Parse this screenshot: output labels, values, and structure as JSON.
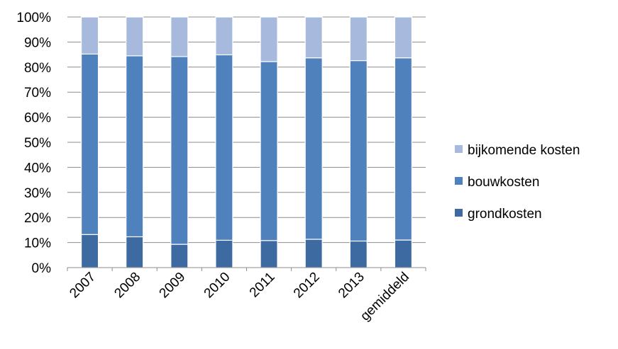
{
  "chart_data": {
    "type": "bar",
    "stacked": "percent",
    "categories": [
      "2007",
      "2008",
      "2009",
      "2010",
      "2011",
      "2012",
      "2013",
      "gemiddeld"
    ],
    "series": [
      {
        "name": "grondkosten",
        "color": "#3d6aa0",
        "values": [
          13.2,
          12.3,
          9.3,
          10.9,
          10.8,
          11.3,
          10.6,
          11.0
        ]
      },
      {
        "name": "bouwkosten",
        "color": "#4f81bd",
        "values": [
          72.0,
          72.2,
          74.9,
          74.0,
          71.4,
          72.4,
          72.0,
          72.7
        ]
      },
      {
        "name": "bijkomende kosten",
        "color": "#a7b9dc",
        "values": [
          14.8,
          15.5,
          15.8,
          15.1,
          17.8,
          16.3,
          17.4,
          16.3
        ]
      }
    ],
    "yaxis": {
      "min": 0,
      "max": 100,
      "step": 10,
      "format": "percent",
      "ticks": [
        "0%",
        "10%",
        "20%",
        "30%",
        "40%",
        "50%",
        "60%",
        "70%",
        "80%",
        "90%",
        "100%"
      ]
    },
    "grid": true,
    "legend": {
      "position": "right",
      "order": [
        "bijkomende kosten",
        "bouwkosten",
        "grondkosten"
      ]
    }
  }
}
